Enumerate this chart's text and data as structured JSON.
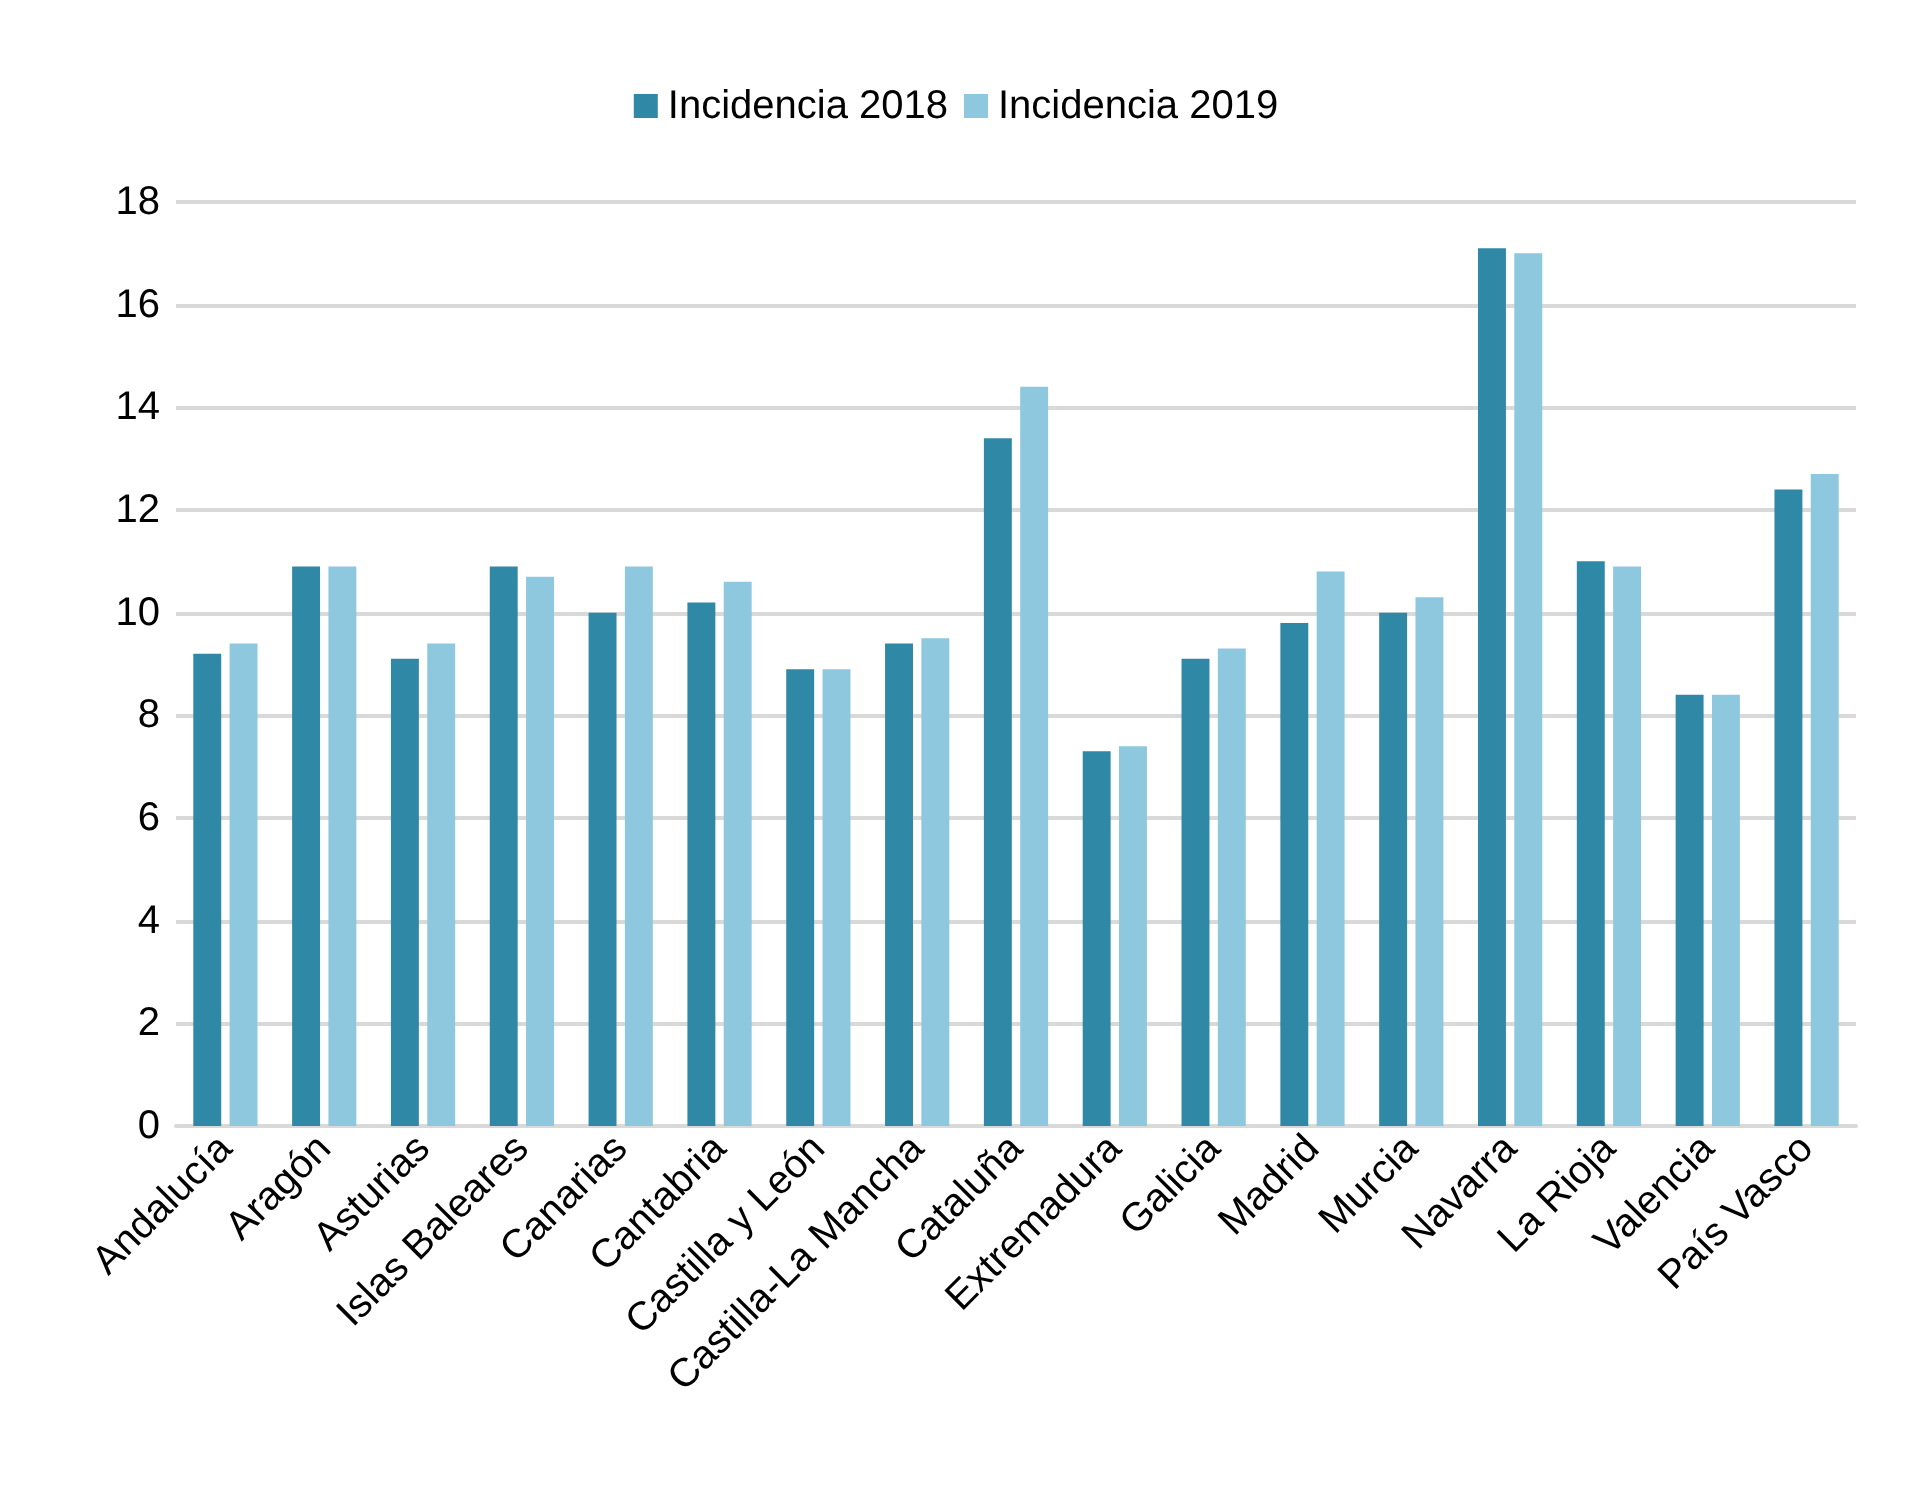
{
  "chart_data": {
    "type": "bar",
    "categories": [
      "Andalucía",
      "Aragón",
      "Asturias",
      "Islas Baleares",
      "Canarias",
      "Cantabria",
      "Castilla y León",
      "Castilla-La Mancha",
      "Cataluña",
      "Extremadura",
      "Galicia",
      "Madrid",
      "Murcia",
      "Navarra",
      "La Rioja",
      "Valencia",
      "País Vasco"
    ],
    "series": [
      {
        "name": "Incidencia 2018",
        "color": "#2f88a6",
        "values": [
          9.2,
          10.9,
          9.1,
          10.9,
          10.0,
          10.2,
          8.9,
          9.4,
          13.4,
          7.3,
          9.1,
          9.8,
          10.0,
          17.1,
          11.0,
          8.4,
          12.4
        ]
      },
      {
        "name": "Incidencia 2019",
        "color": "#8dc8df",
        "values": [
          9.4,
          10.9,
          9.4,
          10.7,
          10.9,
          10.6,
          8.9,
          9.5,
          14.4,
          7.4,
          9.3,
          10.8,
          10.3,
          17.0,
          10.9,
          8.4,
          12.7
        ]
      }
    ],
    "ylim": [
      0,
      18
    ],
    "yticks": [
      0,
      2,
      4,
      6,
      8,
      10,
      12,
      14,
      16,
      18
    ],
    "grid": "y",
    "legend": "top"
  }
}
